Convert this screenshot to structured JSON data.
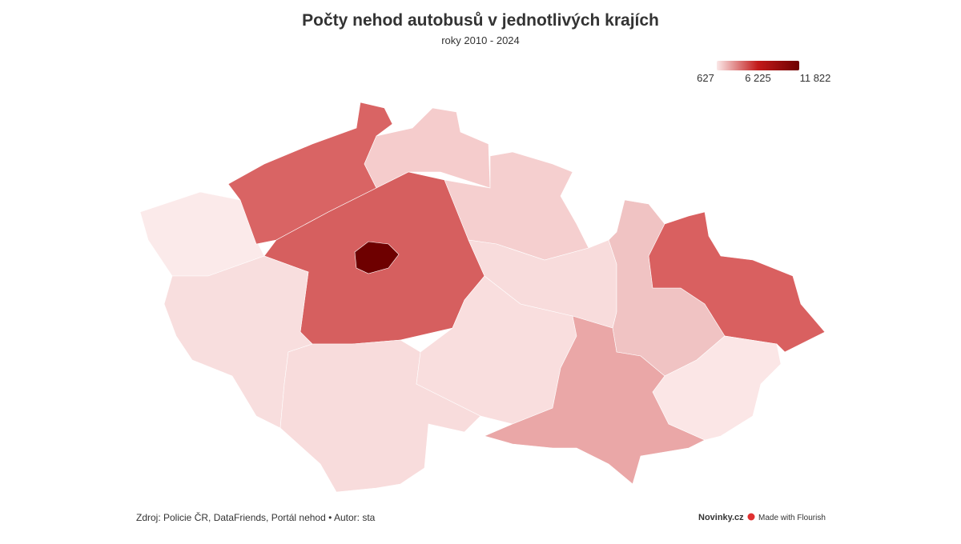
{
  "header": {
    "title": "Počty nehod autobusů v jednotlivých krajích",
    "subtitle": "roky 2010 - 2024"
  },
  "legend": {
    "ticks": [
      {
        "value": 627,
        "label": "627"
      },
      {
        "value": 6225,
        "label": "6 225"
      },
      {
        "value": 11822,
        "label": "11 822"
      }
    ]
  },
  "footer": {
    "source": "Zdroj: Policie ČR, DataFriends, Portál nehod • Autor: sta",
    "brand": "Novinky.cz",
    "credit": "Made with Flourish"
  }
}
